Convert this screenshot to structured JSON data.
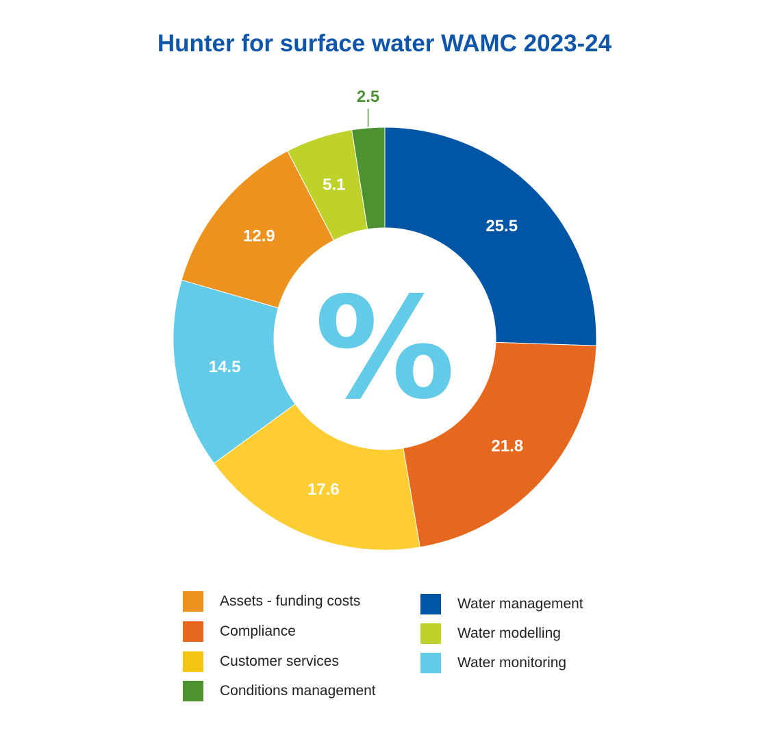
{
  "chart_data": {
    "type": "pie",
    "title": "Hunter for surface water WAMC 2023-24",
    "center_symbol": "%",
    "slices": [
      {
        "name": "Water management",
        "value": 25.5,
        "label": "25.5",
        "color": "#0055a5"
      },
      {
        "name": "Compliance",
        "value": 21.8,
        "label": "21.8",
        "color": "#e6681e"
      },
      {
        "name": "Customer services",
        "value": 17.6,
        "label": "17.6",
        "color": "#fecc33"
      },
      {
        "name": "Water monitoring",
        "value": 14.5,
        "label": "14.5",
        "color": "#63cae8"
      },
      {
        "name": "Assets - funding costs",
        "value": 12.9,
        "label": "12.9",
        "color": "#ec921f"
      },
      {
        "name": "Water modelling",
        "value": 5.1,
        "label": "5.1",
        "color": "#bfd22b"
      },
      {
        "name": "Conditions management",
        "value": 2.5,
        "label": "2.5",
        "color": "#4c9231"
      }
    ],
    "legend": {
      "columns": [
        [
          {
            "label": "Assets - funding costs",
            "color": "#ec921f"
          },
          {
            "label": "Compliance",
            "color": "#e6681e"
          },
          {
            "label": "Customer services",
            "color": "#f4c614"
          },
          {
            "label": "Conditions management",
            "color": "#4c9231"
          }
        ],
        [
          {
            "label": "Water management",
            "color": "#0055a5"
          },
          {
            "label": "Water modelling",
            "color": "#bfd22b"
          },
          {
            "label": "Water monitoring",
            "color": "#63cae8"
          }
        ]
      ],
      "position": "bottom"
    },
    "colors": {
      "title": "#0f55a8",
      "center_symbol": "#63cae8",
      "outside_label": "#4c9231"
    }
  }
}
